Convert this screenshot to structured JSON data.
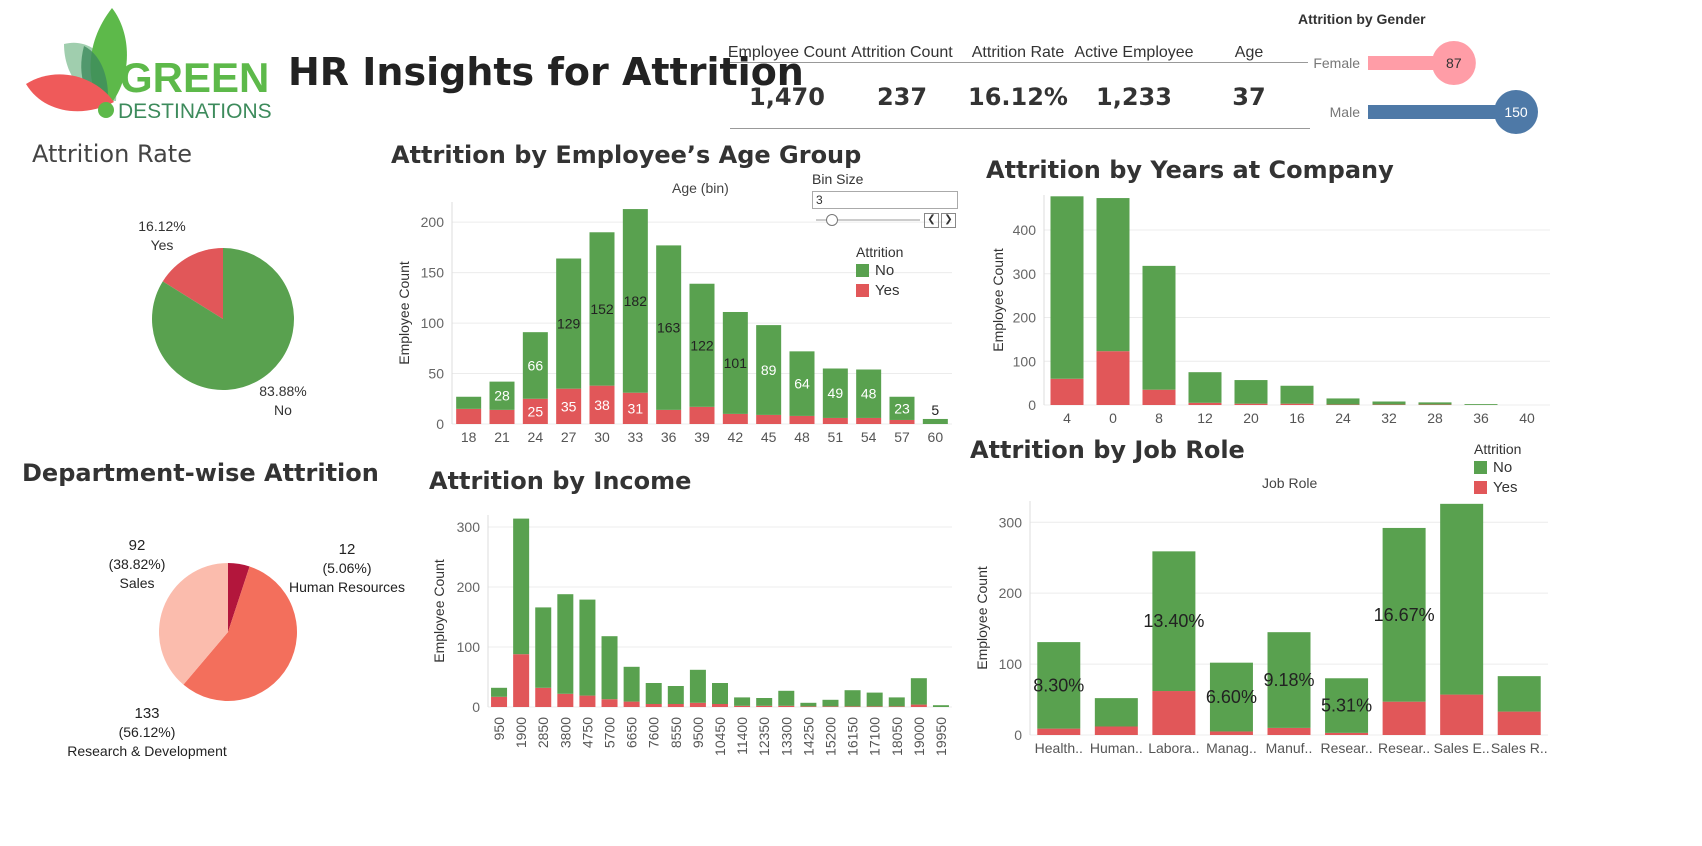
{
  "header": {
    "logo_top": "GREEN",
    "logo_bottom": "DESTINATIONS",
    "title": "HR Insights for Attrition"
  },
  "kpis": [
    {
      "label": "Employee Count",
      "value": "1,470"
    },
    {
      "label": "Attrition Count",
      "value": "237"
    },
    {
      "label": "Attrition Rate",
      "value": "16.12%"
    },
    {
      "label": "Active Employee",
      "value": "1,233"
    },
    {
      "label": "Age",
      "value": "37"
    }
  ],
  "colors": {
    "no": "#59a14f",
    "yes": "#e15759",
    "female": "#ff9da7",
    "male": "#4e79a7",
    "dept_sales": "#fbbcad",
    "dept_hr": "#b3163c",
    "dept_rd": "#f36f5c"
  },
  "legend": {
    "title": "Attrition",
    "no": "No",
    "yes": "Yes"
  },
  "bin_control": {
    "label": "Bin Size",
    "value": "3"
  },
  "chart_data": [
    {
      "id": "gender",
      "type": "bar",
      "title": "Attrition by Gender",
      "categories": [
        "Female",
        "Male"
      ],
      "values": [
        87,
        150
      ],
      "value_labels": [
        "87",
        "150"
      ]
    },
    {
      "id": "attrition_rate",
      "type": "pie",
      "title": "Attrition Rate",
      "slices": [
        {
          "name": "Yes",
          "value": 16.12,
          "label": "16.12%"
        },
        {
          "name": "No",
          "value": 83.88,
          "label": "83.88%"
        }
      ]
    },
    {
      "id": "department",
      "type": "pie",
      "title": "Department-wise Attrition",
      "slices": [
        {
          "name": "Human Resources",
          "value": 12,
          "count": "12",
          "pct": "(5.06%)"
        },
        {
          "name": "Research & Development",
          "value": 133,
          "count": "133",
          "pct": "(56.12%)"
        },
        {
          "name": "Sales",
          "value": 92,
          "count": "92",
          "pct": "(38.82%)"
        }
      ]
    },
    {
      "id": "age",
      "type": "bar",
      "stacked": true,
      "title": "Attrition by Employee’s Age Group",
      "subtitle": "Age (bin)",
      "ylabel": "Employee Count",
      "ylim": [
        0,
        220
      ],
      "yticks": [
        0,
        50,
        100,
        150,
        200
      ],
      "categories": [
        "18",
        "21",
        "24",
        "27",
        "30",
        "33",
        "36",
        "39",
        "42",
        "45",
        "48",
        "51",
        "54",
        "57",
        "60"
      ],
      "series": [
        {
          "name": "Yes",
          "values": [
            15,
            14,
            25,
            35,
            38,
            31,
            14,
            17,
            10,
            9,
            8,
            6,
            6,
            4,
            0
          ]
        },
        {
          "name": "No",
          "values": [
            12,
            28,
            66,
            129,
            152,
            182,
            163,
            122,
            101,
            89,
            64,
            49,
            48,
            23,
            5
          ]
        }
      ],
      "labels_no": [
        "",
        "28",
        "66",
        "129",
        "152",
        "182",
        "163",
        "122",
        "101",
        "89",
        "64",
        "49",
        "48",
        "23",
        "5"
      ],
      "labels_yes": [
        "",
        "",
        "25",
        "35",
        "38",
        "31",
        "",
        "",
        "",
        "",
        "",
        "",
        "",
        "",
        ""
      ]
    },
    {
      "id": "years",
      "type": "bar",
      "stacked": true,
      "title": "Attrition by Years at Company",
      "ylabel": "Employee Count",
      "ylim": [
        0,
        480
      ],
      "yticks": [
        0,
        100,
        200,
        300,
        400
      ],
      "categories": [
        "4",
        "0",
        "8",
        "12",
        "20",
        "16",
        "24",
        "32",
        "28",
        "36",
        "40"
      ],
      "series": [
        {
          "name": "Yes",
          "values": [
            60,
            123,
            35,
            5,
            3,
            3,
            1,
            1,
            1,
            0,
            0
          ]
        },
        {
          "name": "No",
          "values": [
            417,
            350,
            283,
            70,
            54,
            41,
            14,
            7,
            5,
            2,
            0
          ]
        }
      ]
    },
    {
      "id": "income",
      "type": "bar",
      "stacked": true,
      "title": "Attrition by Income",
      "ylabel": "Employee Count",
      "ylim": [
        0,
        320
      ],
      "yticks": [
        0,
        100,
        200,
        300
      ],
      "categories": [
        "950",
        "1900",
        "2850",
        "3800",
        "4750",
        "5700",
        "6650",
        "7600",
        "8550",
        "9500",
        "10450",
        "11400",
        "12350",
        "13300",
        "14250",
        "15200",
        "16150",
        "17100",
        "18050",
        "19000",
        "19950"
      ],
      "series": [
        {
          "name": "Yes",
          "values": [
            17,
            88,
            32,
            22,
            19,
            13,
            9,
            5,
            5,
            7,
            5,
            2,
            2,
            2,
            1,
            1,
            1,
            1,
            1,
            4,
            0
          ]
        },
        {
          "name": "No",
          "values": [
            15,
            226,
            134,
            166,
            160,
            105,
            58,
            35,
            30,
            55,
            35,
            14,
            13,
            25,
            6,
            11,
            27,
            23,
            15,
            44,
            3
          ]
        }
      ]
    },
    {
      "id": "job_role",
      "type": "bar",
      "stacked": true,
      "title": "Attrition by Job Role",
      "subtitle": "Job Role",
      "ylabel": "Employee Count",
      "ylim": [
        0,
        330
      ],
      "yticks": [
        0,
        100,
        200,
        300
      ],
      "categories": [
        "Health..",
        "Human..",
        "Labora..",
        "Manag..",
        "Manuf..",
        "Resear..",
        "Resear..",
        "Sales E..",
        "Sales R.."
      ],
      "series": [
        {
          "name": "Yes",
          "values": [
            9,
            12,
            62,
            5,
            10,
            3,
            47,
            57,
            33
          ]
        },
        {
          "name": "No",
          "values": [
            122,
            40,
            197,
            97,
            135,
            77,
            245,
            269,
            50
          ]
        }
      ],
      "rate_labels": [
        "8.30%",
        "",
        "13.40%",
        "6.60%",
        "9.18%",
        "5.31%",
        "16.67%",
        "",
        ""
      ]
    }
  ]
}
